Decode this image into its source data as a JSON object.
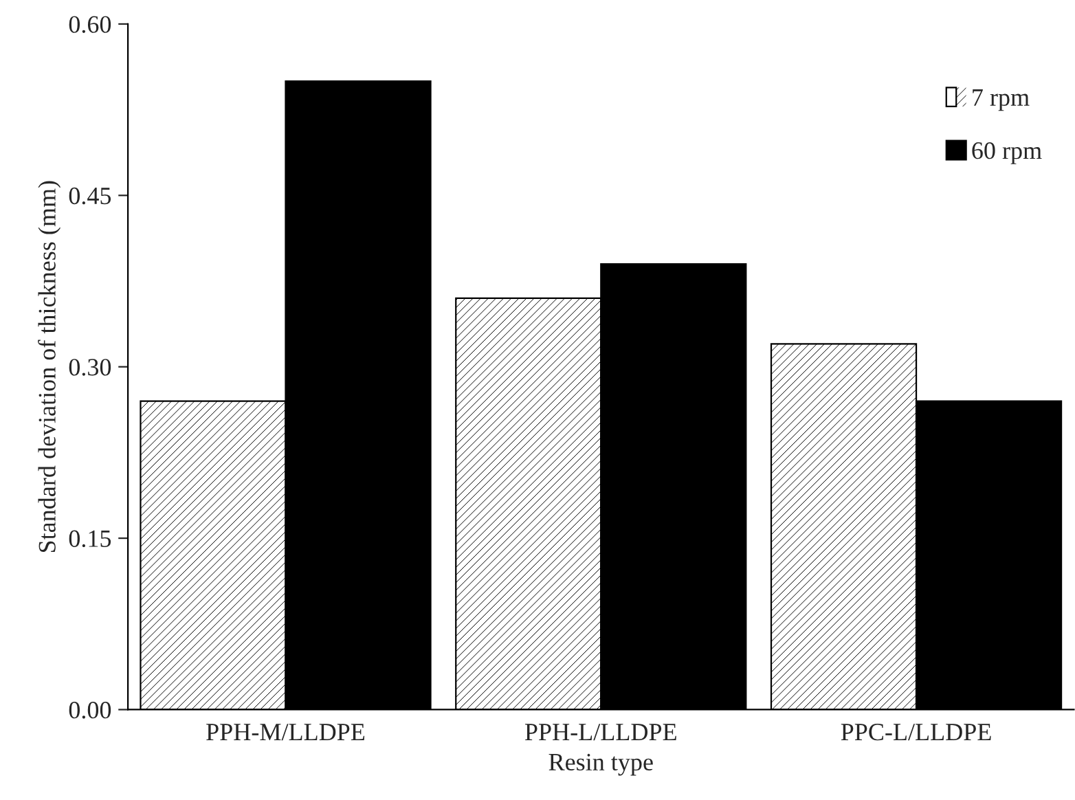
{
  "chart_data": {
    "type": "bar",
    "xlabel": "Resin type",
    "ylabel": "Standard deviation of thickness (mm)",
    "categories": [
      "PPH-M/LLDPE",
      "PPH-L/LLDPE",
      "PPC-L/LLDPE"
    ],
    "series": [
      {
        "name": "7 rpm",
        "color": "#ffffff",
        "values": [
          0.27,
          0.36,
          0.32
        ]
      },
      {
        "name": "60 rpm",
        "color": "#000000",
        "values": [
          0.55,
          0.39,
          0.27
        ]
      }
    ],
    "ylim": [
      0,
      0.6
    ],
    "yticks": [
      {
        "value": 0,
        "label": "0.00"
      },
      {
        "value": 0.15,
        "label": "0.15"
      },
      {
        "value": 0.3,
        "label": "0.30"
      },
      {
        "value": 0.45,
        "label": "0.45"
      },
      {
        "value": 0.6,
        "label": "0.60"
      }
    ],
    "grid": false,
    "legend": "top right"
  }
}
